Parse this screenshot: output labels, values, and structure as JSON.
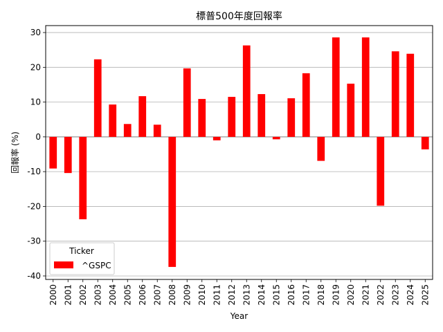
{
  "chart_data": {
    "type": "bar",
    "title": "標普500年度回報率",
    "xlabel": "Year",
    "ylabel": "回報率 (%)",
    "ylim": [
      -41,
      32
    ],
    "yticks": [
      -40,
      -30,
      -20,
      -10,
      0,
      10,
      20,
      30
    ],
    "grid": "y",
    "legend": {
      "title": "Ticker",
      "placement": "lower-left"
    },
    "categories": [
      "2000",
      "2001",
      "2002",
      "2003",
      "2004",
      "2005",
      "2006",
      "2007",
      "2008",
      "2009",
      "2010",
      "2011",
      "2012",
      "2013",
      "2014",
      "2015",
      "2016",
      "2017",
      "2018",
      "2019",
      "2020",
      "2021",
      "2022",
      "2023",
      "2024",
      "2025"
    ],
    "series": [
      {
        "name": "^GSPC",
        "color": "#ff0000",
        "values": [
          -9.1,
          -10.4,
          -23.7,
          22.3,
          9.3,
          3.7,
          11.7,
          3.5,
          -37.4,
          19.7,
          10.9,
          -1.0,
          11.5,
          26.3,
          12.3,
          -0.7,
          11.1,
          18.3,
          -6.9,
          28.6,
          15.3,
          28.6,
          -19.8,
          24.6,
          23.9,
          -3.6
        ]
      }
    ]
  }
}
